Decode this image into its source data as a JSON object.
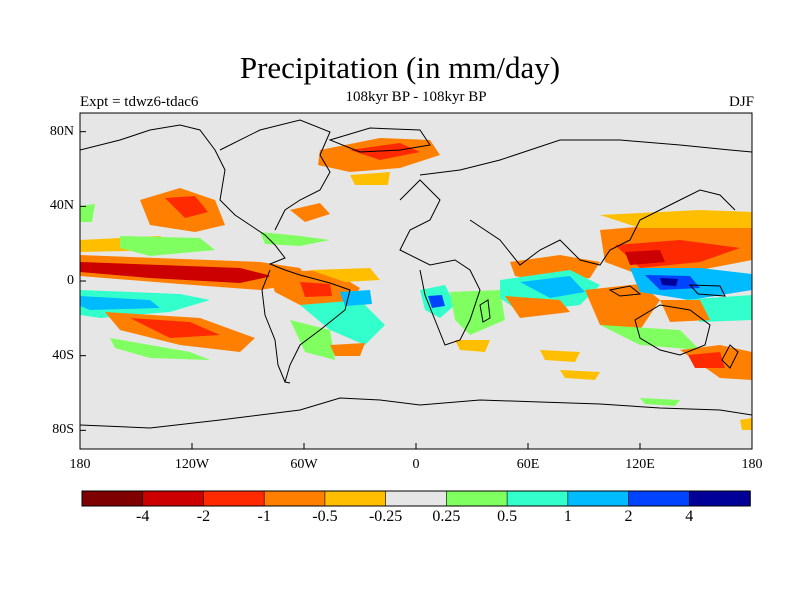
{
  "title": "Precipitation (in mm/day)",
  "subtitle": "108kyr BP - 108kyr BP",
  "experiment_label": "Expt = tdwz6-tdac6",
  "season": "DJF",
  "colors": {
    "ocean_background": "#e6e6e6",
    "coastline": "#000000",
    "colorbar": [
      "#7f0000",
      "#cc0000",
      "#ff2a00",
      "#ff7f00",
      "#ffbf00",
      "#e6e6e6",
      "#80ff60",
      "#33ffcc",
      "#00bbff",
      "#0044ff",
      "#000099"
    ]
  },
  "map_data": {
    "projection": "cylindrical equidistant",
    "lon_range": [
      -180,
      180
    ],
    "lat_range": [
      -90,
      90
    ],
    "lat_ticks": [
      {
        "value": 80,
        "label": "80N"
      },
      {
        "value": 40,
        "label": "40N"
      },
      {
        "value": 0,
        "label": "0"
      },
      {
        "value": -40,
        "label": "40S"
      },
      {
        "value": -80,
        "label": "80S"
      }
    ],
    "lon_ticks": [
      {
        "value": -180,
        "label": "180"
      },
      {
        "value": -120,
        "label": "120W"
      },
      {
        "value": -60,
        "label": "60W"
      },
      {
        "value": 0,
        "label": "0"
      },
      {
        "value": 60,
        "label": "60E"
      },
      {
        "value": 120,
        "label": "120E"
      },
      {
        "value": 180,
        "label": "180"
      }
    ],
    "colorbar_labels": [
      "-4",
      "-2",
      "-1",
      "-0.5",
      "-0.25",
      "0.25",
      "0.5",
      "1",
      "2",
      "4"
    ]
  }
}
